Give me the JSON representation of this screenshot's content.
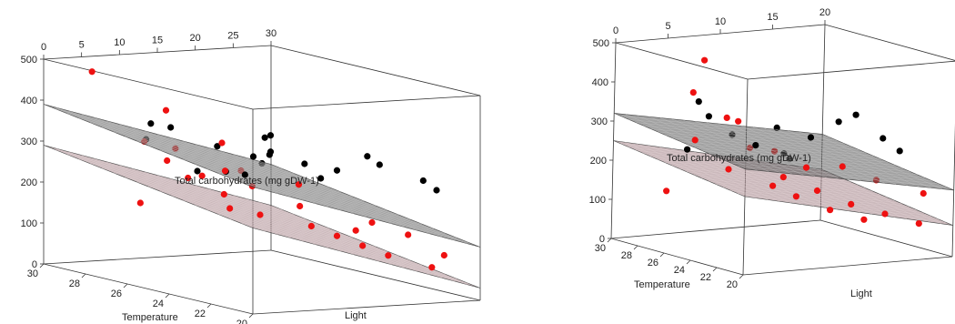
{
  "chart_data": [
    {
      "type": "scatter",
      "subtype": "3d-scatter-with-regression-planes",
      "title": "",
      "xlabel": "Temperature",
      "ylabel": "Light",
      "zlabel": "Total carbohydrates (mg gDW-1)",
      "zlim": [
        0,
        500
      ],
      "xlim": [
        20,
        30
      ],
      "ylim": [
        0,
        30
      ],
      "z_ticks": [
        "0",
        "100",
        "200",
        "300",
        "400",
        "500"
      ],
      "x_ticks": [
        "30",
        "28",
        "26",
        "24",
        "22",
        "20"
      ],
      "y_ticks": [
        "0",
        "5",
        "10",
        "15",
        "20",
        "25",
        "30"
      ],
      "grid": false,
      "series": [
        {
          "color": "#000000",
          "points": [
            [
              23.5,
              12,
              340
            ],
            [
              23.5,
              12,
              380
            ],
            [
              24.5,
              14,
              360
            ],
            [
              25,
              16,
              310
            ],
            [
              25,
              15,
              290
            ],
            [
              26,
              13,
              260
            ],
            [
              27,
              12,
              250
            ],
            [
              22.5,
              22,
              330
            ],
            [
              23,
              25,
              300
            ],
            [
              22,
              28,
              270
            ],
            [
              24,
              20,
              260
            ],
            [
              28.5,
              10,
              350
            ],
            [
              28,
              8,
              320
            ],
            [
              26.5,
              18,
              285
            ],
            [
              25.5,
              22,
              275
            ],
            [
              21,
              27,
              260
            ],
            [
              27.5,
              16,
              300
            ],
            [
              24,
              10,
              280
            ],
            [
              29,
              14,
              330
            ],
            [
              22.5,
              18,
              300
            ]
          ]
        },
        {
          "color": "#ee1111",
          "points": [
            [
              29.5,
              5,
              470
            ],
            [
              28.5,
              12,
              380
            ],
            [
              27,
              5,
              330
            ],
            [
              26,
              8,
              250
            ],
            [
              25,
              10,
              220
            ],
            [
              24,
              12,
              180
            ],
            [
              23,
              16,
              160
            ],
            [
              22.5,
              18,
              140
            ],
            [
              22,
              20,
              120
            ],
            [
              21.5,
              22,
              100
            ],
            [
              26,
              15,
              260
            ],
            [
              27.5,
              14,
              230
            ],
            [
              28,
              18,
              300
            ],
            [
              24,
              8,
              200
            ],
            [
              25,
              20,
              180
            ],
            [
              23,
              24,
              160
            ],
            [
              22,
              26,
              140
            ],
            [
              21,
              28,
              100
            ],
            [
              20.5,
              25,
              80
            ],
            [
              29,
              10,
              150
            ],
            [
              28,
              22,
              190
            ],
            [
              26.5,
              24,
              210
            ],
            [
              24.5,
              26,
              120
            ],
            [
              27,
              8,
              280
            ],
            [
              29.5,
              16,
              270
            ],
            [
              23.5,
              6,
              300
            ]
          ]
        }
      ],
      "planes": [
        {
          "color": "#555555",
          "upper": true
        },
        {
          "color": "#a07f85",
          "upper": false
        }
      ]
    },
    {
      "type": "scatter",
      "subtype": "3d-scatter-with-regression-planes",
      "title": "",
      "xlabel": "Temperature",
      "ylabel": "Light",
      "zlabel": "Total carbohydrates (mg gDW-1)",
      "zlim": [
        0,
        500
      ],
      "xlim": [
        20,
        30
      ],
      "ylim": [
        0,
        20
      ],
      "z_ticks": [
        "0",
        "100",
        "200",
        "300",
        "400",
        "500"
      ],
      "x_ticks": [
        "30",
        "28",
        "26",
        "24",
        "22",
        "20"
      ],
      "y_ticks": [
        "0",
        "5",
        "10",
        "15",
        "20"
      ],
      "grid": false,
      "series": [
        {
          "color": "#000000",
          "points": [
            [
              26,
              3,
              380
            ],
            [
              26,
              4,
              340
            ],
            [
              25,
              5,
              300
            ],
            [
              24,
              6,
              280
            ],
            [
              24,
              8,
              320
            ],
            [
              23,
              10,
              300
            ],
            [
              22.5,
              12,
              340
            ],
            [
              22,
              13,
              360
            ],
            [
              21.5,
              15,
              300
            ],
            [
              21,
              16,
              270
            ],
            [
              25,
              10,
              240
            ],
            [
              26,
              2,
              260
            ],
            [
              23,
              8,
              250
            ]
          ]
        },
        {
          "color": "#ee1111",
          "points": [
            [
              28,
              6,
              460
            ],
            [
              28,
              5,
              380
            ],
            [
              27,
              7,
              320
            ],
            [
              27,
              4,
              270
            ],
            [
              26,
              8,
              250
            ],
            [
              26,
              6,
              200
            ],
            [
              25,
              10,
              180
            ],
            [
              25,
              9,
              160
            ],
            [
              24,
              12,
              150
            ],
            [
              24,
              10,
              140
            ],
            [
              23,
              14,
              120
            ],
            [
              23,
              12,
              110
            ],
            [
              22,
              16,
              100
            ],
            [
              22,
              14,
              90
            ],
            [
              21,
              18,
              80
            ],
            [
              27.5,
              2,
              140
            ],
            [
              26.5,
              11,
              230
            ],
            [
              24.5,
              15,
              200
            ],
            [
              23.5,
              17,
              170
            ],
            [
              22.5,
              9,
              230
            ],
            [
              21.5,
              19,
              150
            ],
            [
              28.5,
              10,
              290
            ]
          ]
        }
      ],
      "planes": [
        {
          "color": "#555555",
          "upper": true
        },
        {
          "color": "#a07f85",
          "upper": false
        }
      ]
    }
  ]
}
